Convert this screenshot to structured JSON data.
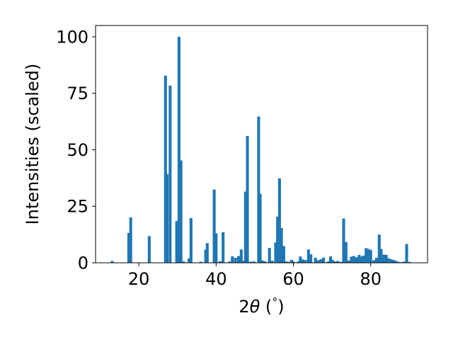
{
  "chart_data": {
    "type": "bar",
    "xlabel_parts": [
      "2",
      "θ",
      " (",
      "°",
      ")"
    ],
    "ylabel": "Intensities (scaled)",
    "xlim": [
      8.8,
      94.7
    ],
    "ylim": [
      0,
      105
    ],
    "x_ticks": [
      20,
      40,
      60,
      80
    ],
    "y_ticks": [
      0,
      25,
      50,
      75,
      100
    ],
    "bar_color": "#1f77b4",
    "bar_width": 0.75,
    "x": [
      13.1,
      17.4,
      17.9,
      22.7,
      26.9,
      27.3,
      28.1,
      29.8,
      30.4,
      30.9,
      31.6,
      33.0,
      33.5,
      36.0,
      37.3,
      37.7,
      39.5,
      40.0,
      41.0,
      41.8,
      43.5,
      44.2,
      45.0,
      45.8,
      46.5,
      47.2,
      47.6,
      48.1,
      49.0,
      49.8,
      51.0,
      51.4,
      51.9,
      52.6,
      53.8,
      54.5,
      55.4,
      55.9,
      56.4,
      56.9,
      57.5,
      58.1,
      58.6,
      59.5,
      60.0,
      61.3,
      61.8,
      62.4,
      63.1,
      63.9,
      64.5,
      65.7,
      66.4,
      67.1,
      67.8,
      69.0,
      69.6,
      70.1,
      70.8,
      71.5,
      72.3,
      73.0,
      73.6,
      74.3,
      75.0,
      75.6,
      76.3,
      77.0,
      77.6,
      78.2,
      78.8,
      79.4,
      80.0,
      80.8,
      81.5,
      82.2,
      82.7,
      83.4,
      84.0,
      84.6,
      85.3,
      86.0,
      86.6,
      87.2,
      88.0,
      88.7,
      89.3,
      90.0
    ],
    "values": [
      0.8,
      13.2,
      20.1,
      11.8,
      82.8,
      39.2,
      78.4,
      18.5,
      100.0,
      45.3,
      0.6,
      2.0,
      19.8,
      0.5,
      5.8,
      8.7,
      32.4,
      13.0,
      0.7,
      13.5,
      0.6,
      2.9,
      2.2,
      3.0,
      5.9,
      0.9,
      31.5,
      56.1,
      0.5,
      0.6,
      64.7,
      30.5,
      1.0,
      0.7,
      6.6,
      0.9,
      9.0,
      20.4,
      37.4,
      15.4,
      7.4,
      0.6,
      0.5,
      1.3,
      0.6,
      0.6,
      2.8,
      1.5,
      1.2,
      5.9,
      3.8,
      2.2,
      1.1,
      1.6,
      2.3,
      0.6,
      2.8,
      1.3,
      0.6,
      0.8,
      0.4,
      19.6,
      9.2,
      1.0,
      2.7,
      3.0,
      2.4,
      3.5,
      2.8,
      3.2,
      6.5,
      6.1,
      5.7,
      1.1,
      2.2,
      12.5,
      6.1,
      3.6,
      3.5,
      2.0,
      1.6,
      1.2,
      0.8,
      0.4,
      0.3,
      0.5,
      8.3,
      0.4
    ]
  }
}
